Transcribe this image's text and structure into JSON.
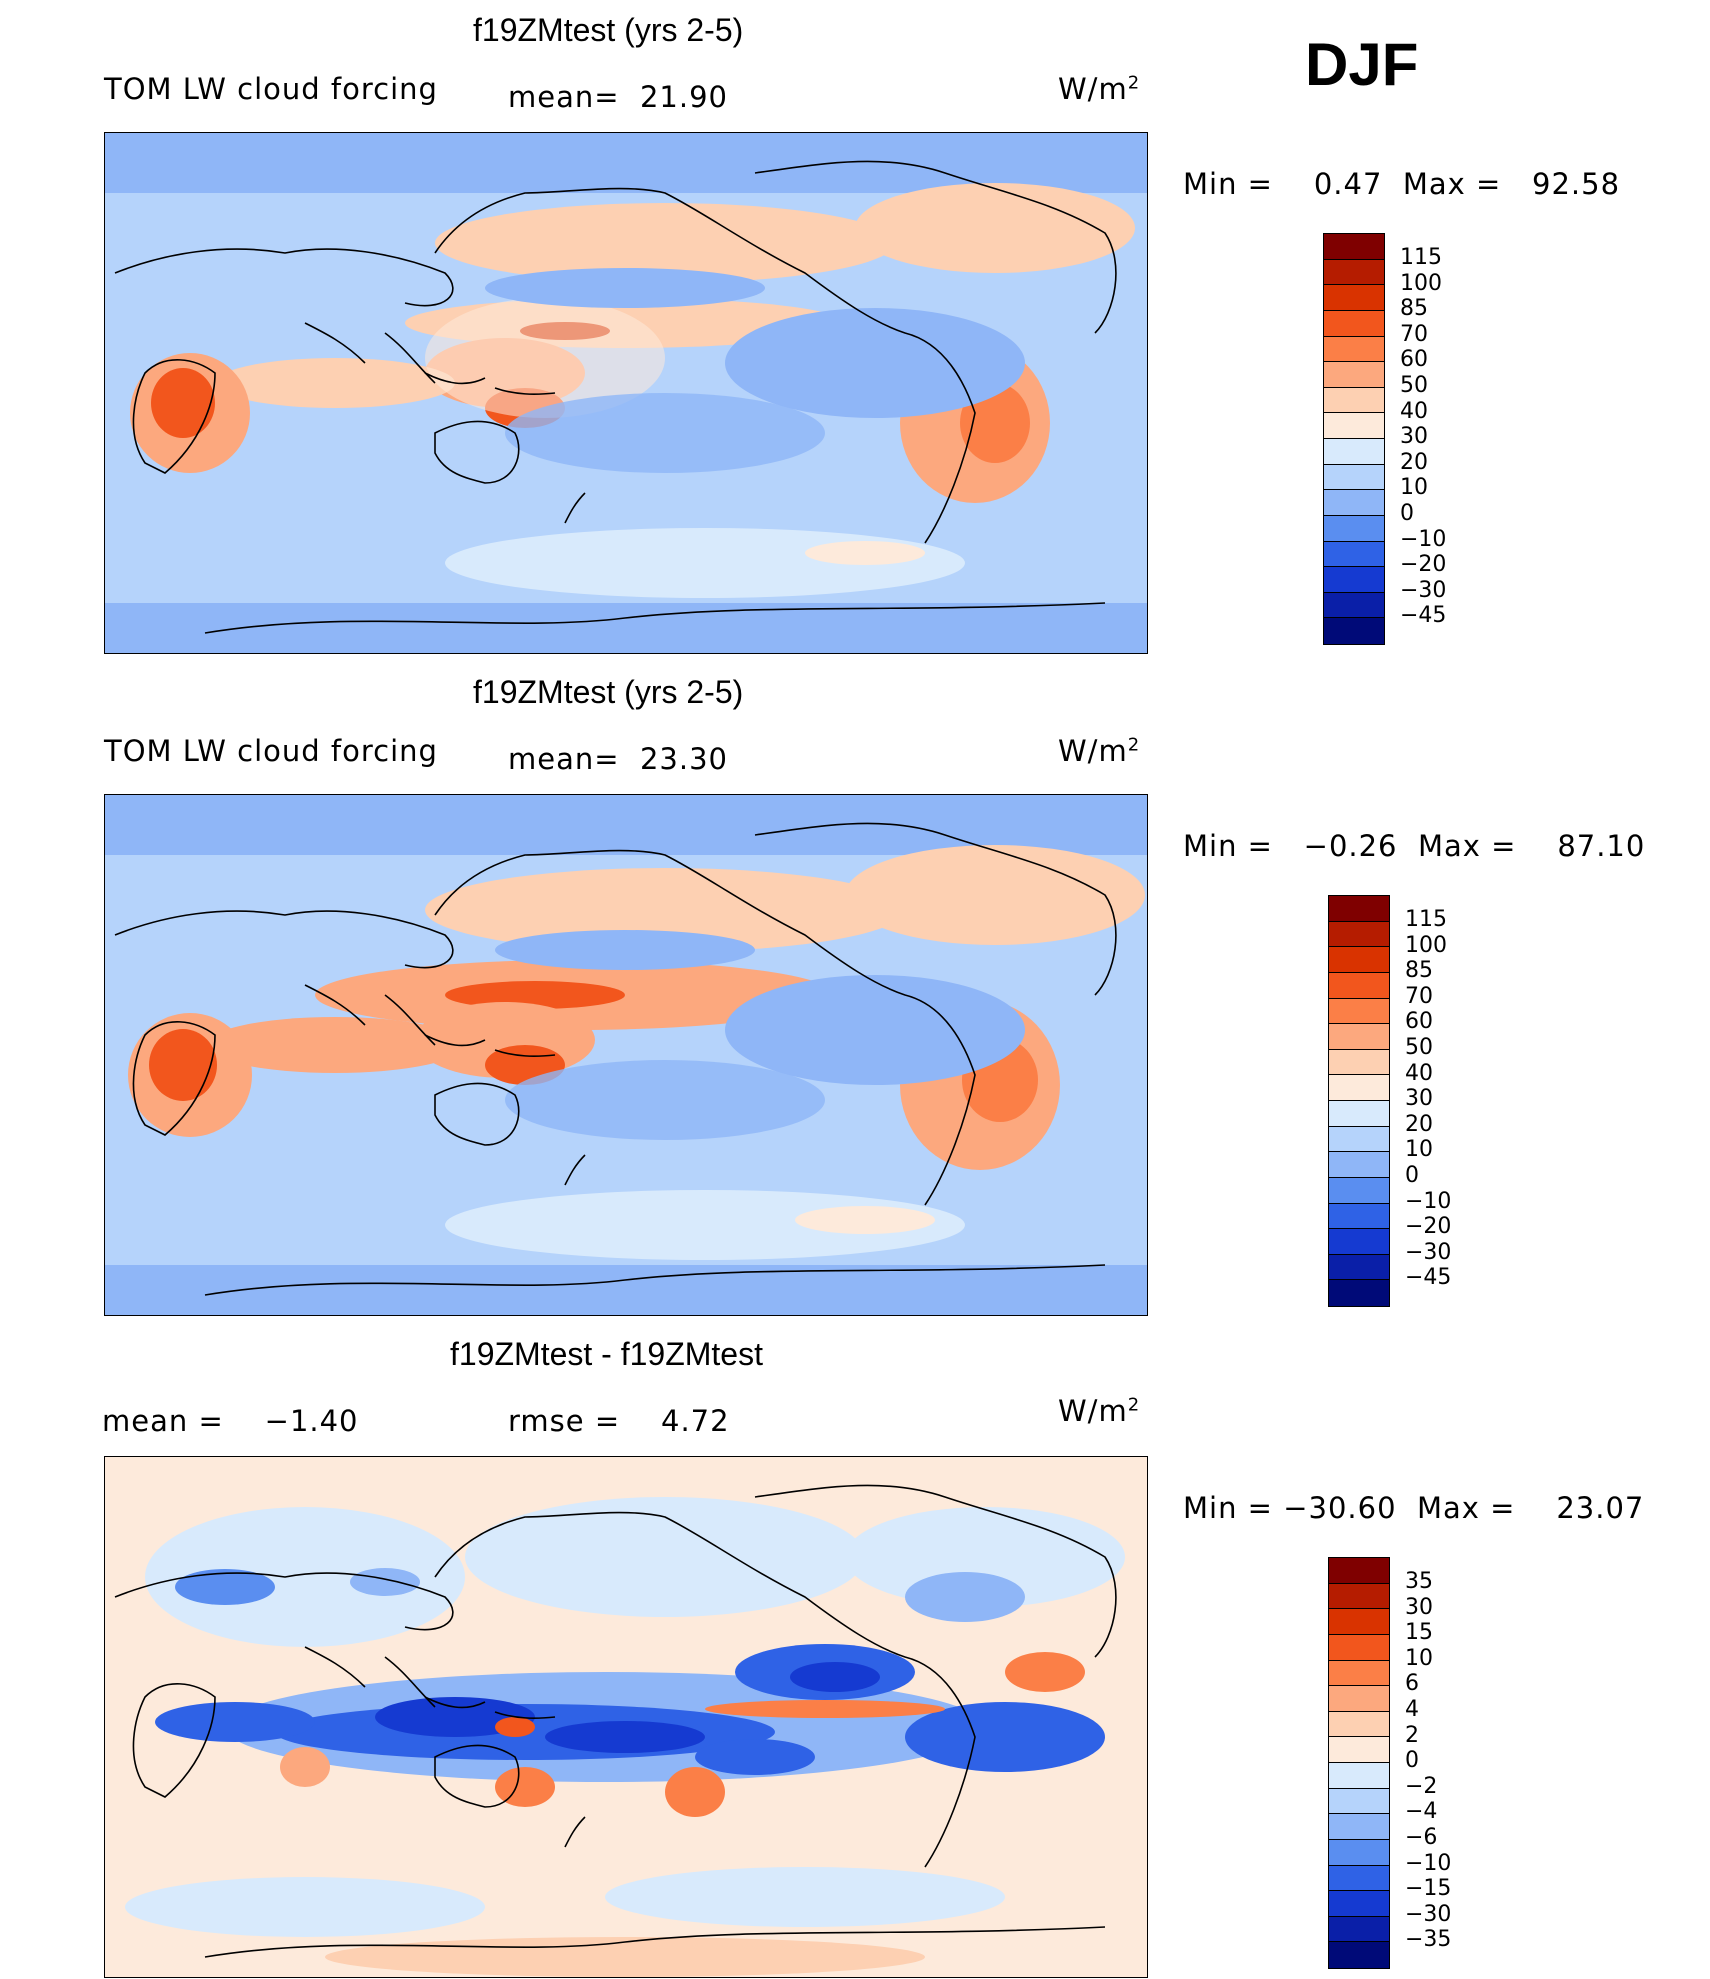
{
  "season": "DJF",
  "panels": [
    {
      "title": "f19ZMtest (yrs 2-5)",
      "left_label": "TOM LW cloud forcing",
      "mean_label": "mean=",
      "mean_value": "21.90",
      "units": "W/m",
      "units_exp": "2",
      "min_label": "Min  =",
      "min_value": "0.47",
      "max_label": "Max  =",
      "max_value": "92.58",
      "ticks": [
        "115",
        "100",
        "85",
        "70",
        "60",
        "50",
        "40",
        "30",
        "20",
        "10",
        "0",
        "−10",
        "−20",
        "−30",
        "−45"
      ]
    },
    {
      "title": "f19ZMtest (yrs 2-5)",
      "left_label": "TOM LW cloud forcing",
      "mean_label": "mean=",
      "mean_value": "23.30",
      "units": "W/m",
      "units_exp": "2",
      "min_label": "Min  =",
      "min_value": "−0.26",
      "max_label": "Max  =",
      "max_value": "87.10",
      "ticks": [
        "115",
        "100",
        "85",
        "70",
        "60",
        "50",
        "40",
        "30",
        "20",
        "10",
        "0",
        "−10",
        "−20",
        "−30",
        "−45"
      ]
    },
    {
      "title": "f19ZMtest - f19ZMtest",
      "mean_label": "mean  =",
      "mean_value": "−1.40",
      "rmse_label": "rmse  =",
      "rmse_value": "4.72",
      "units": "W/m",
      "units_exp": "2",
      "min_label": "Min  =",
      "min_value": "−30.60",
      "max_label": "Max  =",
      "max_value": "23.07",
      "ticks": [
        "35",
        "30",
        "15",
        "10",
        "6",
        "4",
        "2",
        "0",
        "−2",
        "−4",
        "−6",
        "−10",
        "−15",
        "−30",
        "−35"
      ]
    }
  ],
  "colors": {
    "scale": [
      "#7f0000",
      "#b51c00",
      "#d93300",
      "#f2561d",
      "#fb7f47",
      "#fca87e",
      "#fdd0b2",
      "#fdeadb",
      "#d8eafc",
      "#b5d3fb",
      "#8fb6f7",
      "#5a8ef0",
      "#2f62e6",
      "#153ad1",
      "#0a1fa8",
      "#000a78"
    ]
  }
}
